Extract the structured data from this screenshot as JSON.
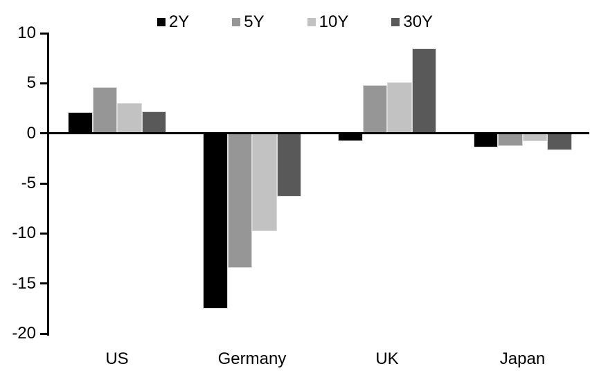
{
  "chart_data": {
    "type": "bar",
    "title": "",
    "xlabel": "",
    "ylabel": "",
    "categories": [
      "US",
      "Germany",
      "UK",
      "Japan"
    ],
    "series": [
      {
        "name": "2Y",
        "color": "#000000",
        "values": [
          2.1,
          -17.5,
          -0.8,
          -1.4
        ]
      },
      {
        "name": "5Y",
        "color": "#969696",
        "values": [
          4.6,
          -13.4,
          4.8,
          -1.3
        ]
      },
      {
        "name": "10Y",
        "color": "#c2c2c2",
        "values": [
          3.0,
          -9.8,
          5.1,
          -0.8
        ]
      },
      {
        "name": "30Y",
        "color": "#595959",
        "values": [
          2.2,
          -6.3,
          8.5,
          -1.7
        ]
      }
    ],
    "ylim": [
      -20,
      10
    ],
    "yticks": [
      10,
      5,
      0,
      -5,
      -10,
      -15,
      -20
    ],
    "grid": false,
    "legend_position": "top-center",
    "axis_color": "#000000",
    "background_color": "#ffffff"
  }
}
